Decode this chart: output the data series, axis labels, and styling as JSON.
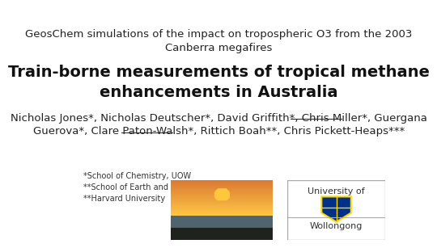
{
  "bg_color": "#ffffff",
  "subtitle_text": "GeosChem simulations of the impact on tropospheric O3 from the 2003\nCanberra megafires",
  "title_text": "Train-borne measurements of tropical methane\nenhancements in Australia",
  "authors_line1": "Nicholas Jones*, Nicholas Deutscher*, David Griffith*, Chris Miller*, Guergana",
  "authors_line2": "Guerova*, Clare Paton-Walsh*, Rittich Boah**, Chris Pickett-Heaps***",
  "underline_names": [
    "Guergana",
    "Guerova*"
  ],
  "footnote_line1": "*School of Chemistry, UOW",
  "footnote_line2": "**School of Earth and Environment, UOW",
  "footnote_line3": "**Harvard University",
  "subtitle_fontsize": 9.5,
  "title_fontsize": 14,
  "authors_fontsize": 9.5,
  "footnote_fontsize": 7
}
